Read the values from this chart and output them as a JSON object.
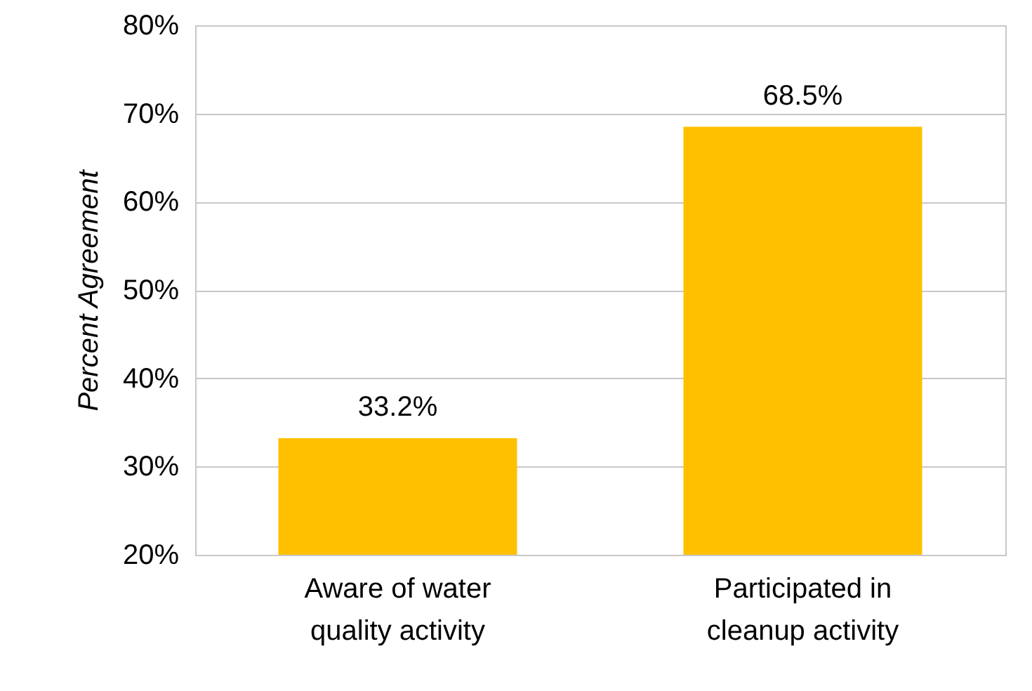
{
  "chart_data": {
    "type": "bar",
    "categories": [
      "Aware of water\nquality activity",
      "Participated in\ncleanup activity"
    ],
    "values": [
      33.2,
      68.5
    ],
    "value_labels": [
      "33.2%",
      "68.5%"
    ],
    "color": "#ffc000",
    "ylabel": "Percent Agreement",
    "ylim": [
      20,
      80
    ],
    "yticks": [
      {
        "value": 20,
        "label": "20%"
      },
      {
        "value": 30,
        "label": "30%"
      },
      {
        "value": 40,
        "label": "40%"
      },
      {
        "value": 50,
        "label": "50%"
      },
      {
        "value": 60,
        "label": "60%"
      },
      {
        "value": 70,
        "label": "70%"
      },
      {
        "value": 80,
        "label": "80%"
      }
    ],
    "grid": "y"
  }
}
